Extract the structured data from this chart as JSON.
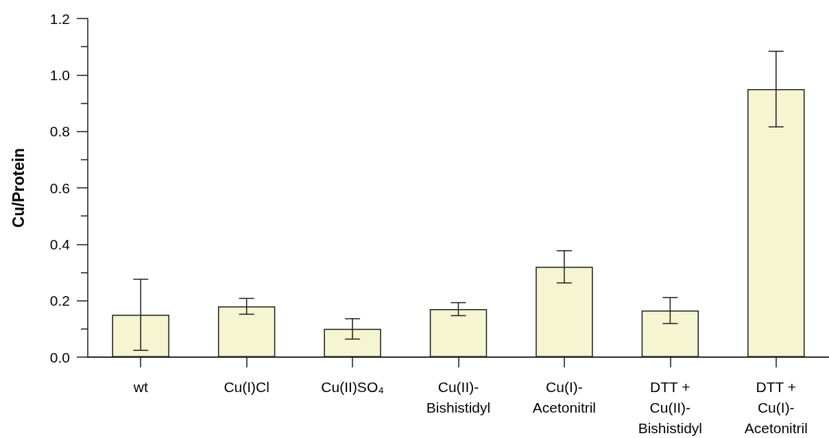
{
  "chart_data": {
    "type": "bar",
    "ylabel": "Cu/Protein",
    "categories": [
      "wt",
      "Cu(I)Cl",
      "Cu(II)SO₄",
      "Cu(II)-\nBishistidyl",
      "Cu(I)-\nAcetonitril",
      "DTT +\nCu(II)-\nBishistidyl",
      "DTT +\nCu(I)-\nAcetonitril"
    ],
    "values": [
      0.15,
      0.18,
      0.1,
      0.17,
      0.32,
      0.165,
      0.95
    ],
    "errors": [
      0.126,
      0.028,
      0.036,
      0.023,
      0.057,
      0.046,
      0.134
    ],
    "color": "#f5f5d2",
    "ylim": [
      0,
      1.2
    ],
    "yticks": [
      {
        "value": 0,
        "label": "0.0"
      },
      {
        "value": 0.1,
        "label": null
      },
      0.2,
      {
        "value": 0.3,
        "label": null
      },
      0.4,
      {
        "value": 0.5,
        "label": null
      },
      0.6,
      {
        "value": 0.7,
        "label": null
      },
      0.8,
      {
        "value": 0.9,
        "label": null
      },
      {
        "value": 1,
        "label": "1.0"
      },
      {
        "value": 1.1,
        "label": null
      },
      1.2
    ]
  }
}
